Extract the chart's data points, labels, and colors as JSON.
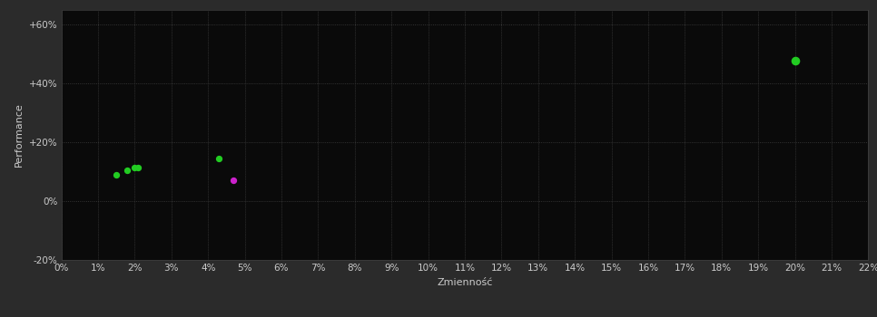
{
  "background_color": "#2b2b2b",
  "plot_bg_color": "#0a0a0a",
  "grid_color": "#404040",
  "grid_linestyle": ":",
  "xlabel": "Zmienność",
  "ylabel": "Performance",
  "xlabel_color": "#cccccc",
  "ylabel_color": "#cccccc",
  "tick_color": "#cccccc",
  "xlim": [
    0.0,
    0.22
  ],
  "ylim": [
    -0.2,
    0.65
  ],
  "xticks": [
    0.0,
    0.01,
    0.02,
    0.03,
    0.04,
    0.05,
    0.06,
    0.07,
    0.08,
    0.09,
    0.1,
    0.11,
    0.12,
    0.13,
    0.14,
    0.15,
    0.16,
    0.17,
    0.18,
    0.19,
    0.2,
    0.21,
    0.22
  ],
  "yticks": [
    -0.2,
    0.0,
    0.2,
    0.4,
    0.6
  ],
  "ytick_labels": [
    "-20%",
    "0%",
    "+20%",
    "+40%",
    "+60%"
  ],
  "green_points": [
    [
      0.015,
      0.09
    ],
    [
      0.018,
      0.105
    ],
    [
      0.02,
      0.113
    ],
    [
      0.021,
      0.113
    ],
    [
      0.043,
      0.145
    ],
    [
      0.2,
      0.475
    ]
  ],
  "magenta_points": [
    [
      0.047,
      0.07
    ]
  ],
  "green_color": "#22cc22",
  "magenta_color": "#cc22cc",
  "point_size": 18,
  "point_size_large": 35,
  "font_size_labels": 8,
  "font_size_ticks": 7.5
}
